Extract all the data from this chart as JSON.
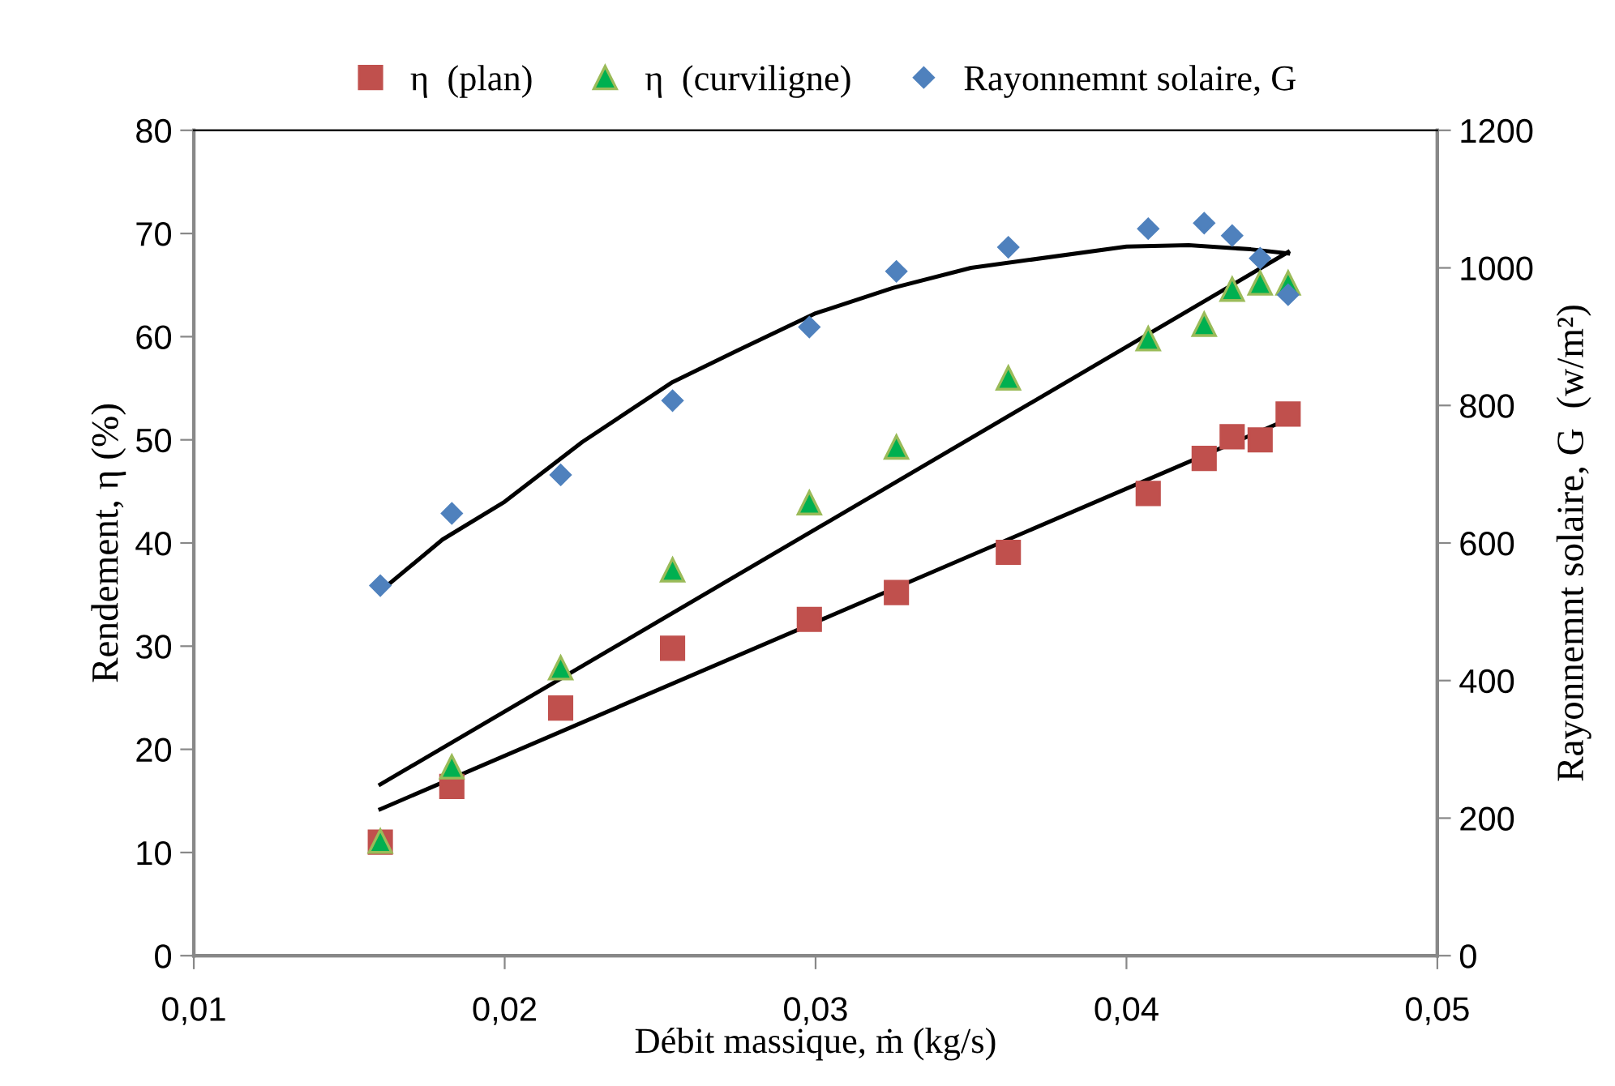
{
  "chart_data": {
    "type": "scatter",
    "xlabel": "Débit massique, ṁ (kg/s)",
    "ylabel": "Rendement, η (%)",
    "y2label": "Rayonnemnt solaire, G  (w/m²)",
    "xlim": [
      0.01,
      0.05
    ],
    "xticks": [
      {
        "value": 0.01,
        "label": "0,01"
      },
      {
        "value": 0.02,
        "label": "0,02"
      },
      {
        "value": 0.03,
        "label": "0,03"
      },
      {
        "value": 0.04,
        "label": "0,04"
      },
      {
        "value": 0.05,
        "label": "0,05"
      }
    ],
    "ylim": [
      0,
      80
    ],
    "yticks": [
      0,
      10,
      20,
      30,
      40,
      50,
      60,
      70,
      80
    ],
    "y2lim": [
      0,
      1200
    ],
    "y2ticks": [
      0,
      200,
      400,
      600,
      800,
      1000,
      1200
    ],
    "grid": false,
    "legend": "top",
    "x": [
      0.016,
      0.0183,
      0.0218,
      0.0254,
      0.0298,
      0.0326,
      0.0362,
      0.0407,
      0.0425,
      0.0434,
      0.0443,
      0.0452
    ],
    "series": [
      {
        "name": "η  (plan)",
        "color": "#c0504d",
        "marker": "square",
        "values": [
          11.0,
          16.4,
          24.0,
          29.8,
          32.6,
          35.2,
          39.1,
          44.8,
          48.2,
          50.3,
          50.0,
          52.5
        ]
      },
      {
        "name": "η  (curviligne)",
        "color": "#00b050",
        "marker": "triangle",
        "values": [
          11.1,
          18.3,
          27.9,
          37.4,
          43.9,
          49.3,
          56.0,
          59.8,
          61.2,
          64.6,
          65.2,
          65.2
        ]
      },
      {
        "name": "Rayonnemnt solaire, G",
        "color": "#4f81bd",
        "marker": "diamond",
        "axis": "y2",
        "values": [
          538,
          643,
          699,
          807,
          914,
          995,
          1030,
          1057,
          1065,
          1047,
          1014,
          961
        ]
      },
      {
        "type": "line",
        "color": "#000000",
        "marker": "none",
        "x": [
          0.016,
          0.0452
        ],
        "values": [
          14.2,
          52.0
        ]
      },
      {
        "type": "line",
        "color": "#000000",
        "marker": "none",
        "x": [
          0.016,
          0.0452
        ],
        "values": [
          16.6,
          68.2
        ]
      },
      {
        "type": "line",
        "color": "#000000",
        "marker": "none",
        "axis": "y2",
        "x": [
          0.016,
          0.018,
          0.02,
          0.0225,
          0.0254,
          0.0275,
          0.03,
          0.0325,
          0.035,
          0.04,
          0.042,
          0.044,
          0.0452
        ],
        "values": [
          530,
          605,
          660,
          747,
          834,
          880,
          934,
          971,
          1000,
          1031,
          1033,
          1027,
          1021
        ]
      }
    ]
  }
}
